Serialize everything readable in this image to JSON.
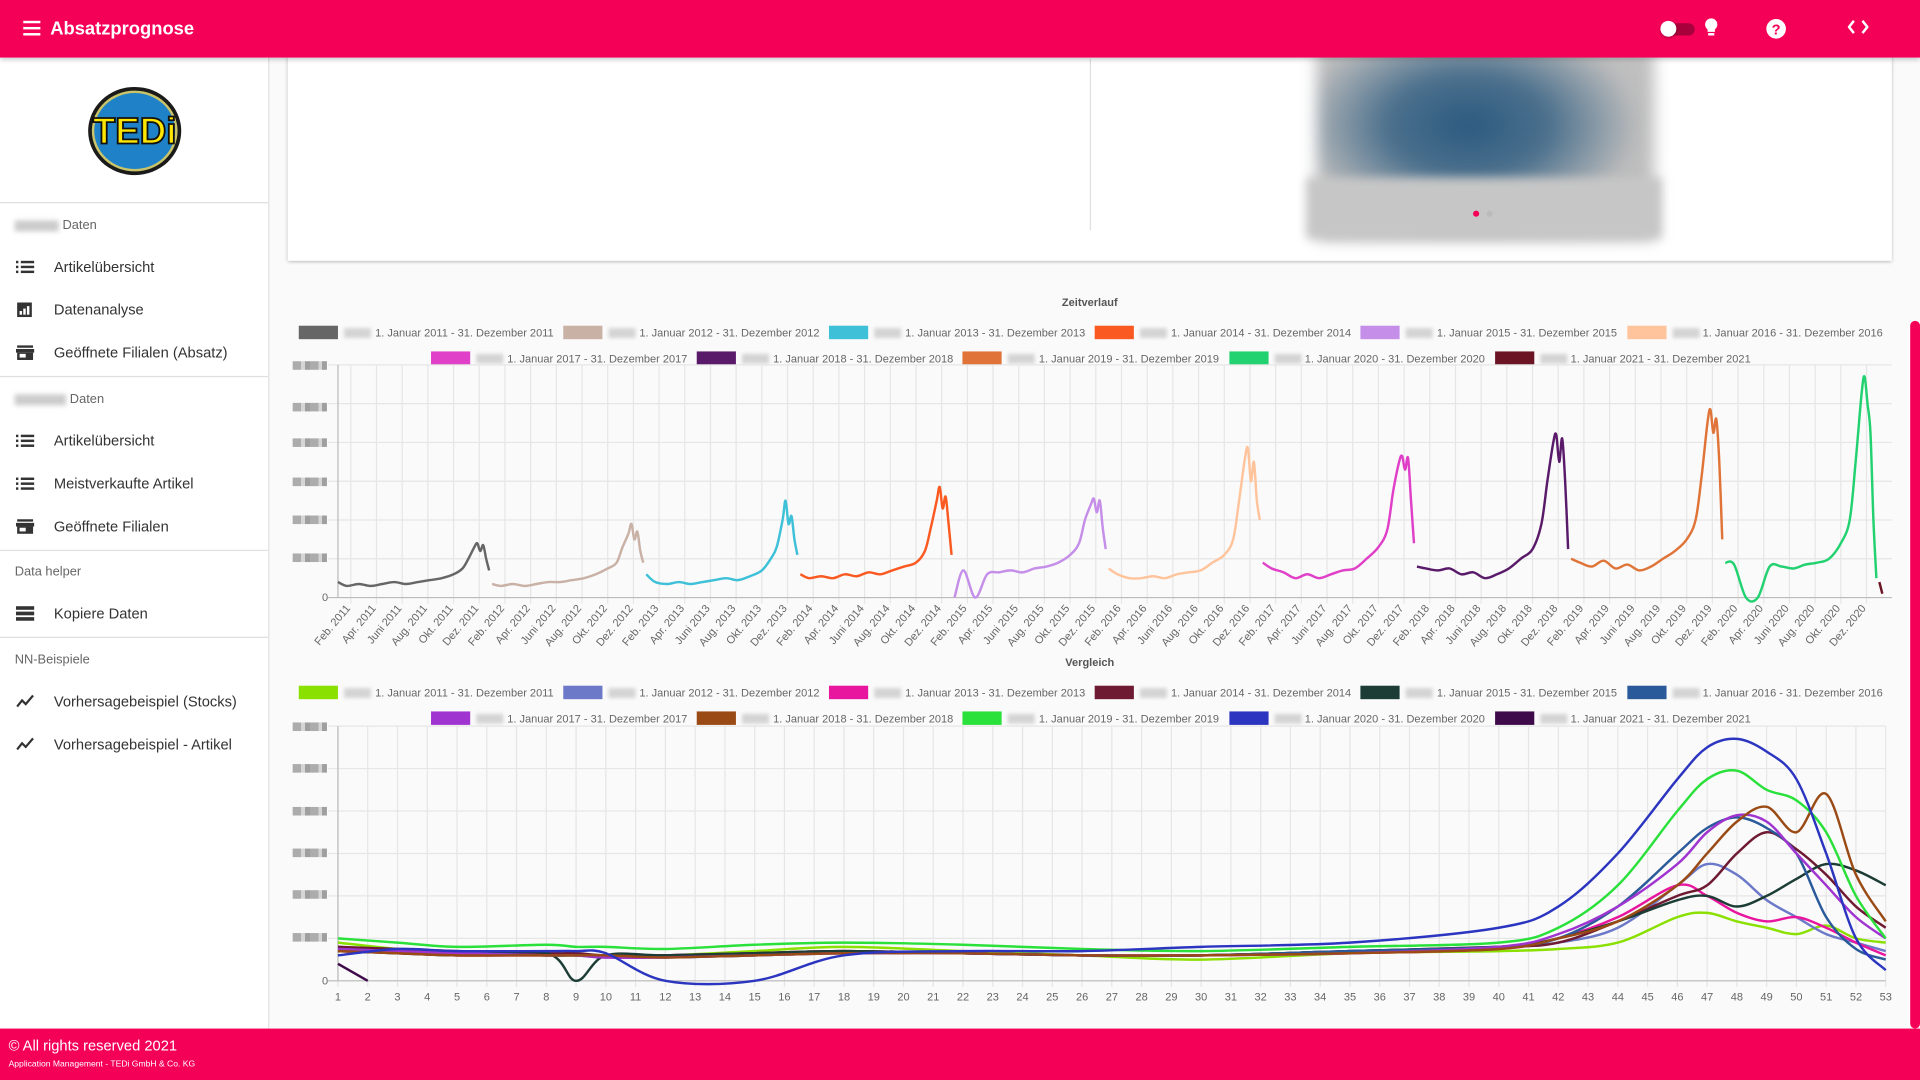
{
  "header": {
    "title": "Absatzprognose",
    "icons": [
      "menu-icon",
      "theme-toggle",
      "lightbulb-icon",
      "help-icon",
      "code-icon"
    ]
  },
  "logo_text": "TEDi",
  "sidebar": {
    "sections": [
      {
        "title": "Daten",
        "items": [
          {
            "label": "Artikelübersicht",
            "icon": "list-icon"
          },
          {
            "label": "Datenanalyse",
            "icon": "chart-icon"
          },
          {
            "label": "Geöffnete Filialen (Absatz)",
            "icon": "store-icon"
          }
        ]
      },
      {
        "title": "Daten",
        "items": [
          {
            "label": "Artikelübersicht",
            "icon": "list-icon"
          },
          {
            "label": "Meistverkaufte Artikel",
            "icon": "list-icon"
          },
          {
            "label": "Geöffnete Filialen",
            "icon": "store-icon"
          }
        ]
      },
      {
        "title": "Data helper",
        "items": [
          {
            "label": "Kopiere Daten",
            "icon": "storage-icon"
          }
        ]
      },
      {
        "title": "NN-Beispiele",
        "items": [
          {
            "label": "Vorhersagebeispiel (Stocks)",
            "icon": "trend-icon"
          },
          {
            "label": "Vorhersagebeispiel - Artikel",
            "icon": "trend-icon"
          }
        ]
      }
    ]
  },
  "footer": {
    "copyright": "© All rights reserved 2021",
    "company": "Application Management - TEDi GmbH & Co. KG"
  },
  "colors": {
    "brand": "#f50057"
  },
  "chart_data": [
    {
      "type": "line",
      "title": "Zeitverlauf",
      "ylim": [
        0,
        120
      ],
      "y_zero_label": "0",
      "x_tick_labels": [
        "Feb. 2011",
        "Apr. 2011",
        "Juni 2011",
        "Aug. 2011",
        "Okt. 2011",
        "Dez. 2011",
        "Feb. 2012",
        "Apr. 2012",
        "Juni 2012",
        "Aug. 2012",
        "Okt. 2012",
        "Dez. 2012",
        "Feb. 2013",
        "Apr. 2013",
        "Juni 2013",
        "Aug. 2013",
        "Okt. 2013",
        "Dez. 2013",
        "Feb. 2014",
        "Apr. 2014",
        "Juni 2014",
        "Aug. 2014",
        "Okt. 2014",
        "Dez. 2014",
        "Feb. 2015",
        "Apr. 2015",
        "Juni 2015",
        "Aug. 2015",
        "Okt. 2015",
        "Dez. 2015",
        "Feb. 2016",
        "Apr. 2016",
        "Juni 2016",
        "Aug. 2016",
        "Okt. 2016",
        "Dez. 2016",
        "Feb. 2017",
        "Apr. 2017",
        "Juni 2017",
        "Aug. 2017",
        "Okt. 2017",
        "Dez. 2017",
        "Feb. 2018",
        "Apr. 2018",
        "Juni 2018",
        "Aug. 2018",
        "Okt. 2018",
        "Dez. 2018",
        "Feb. 2019",
        "Apr. 2019",
        "Juni 2019",
        "Aug. 2019",
        "Okt. 2019",
        "Dez. 2019",
        "Feb. 2020",
        "Apr. 2020",
        "Juni 2020",
        "Aug. 2020",
        "Okt. 2020",
        "Dez. 2020"
      ],
      "weeks": [
        1,
        4,
        8,
        12,
        16,
        20,
        24,
        28,
        32,
        36,
        40,
        43,
        45,
        47,
        48,
        49,
        50,
        51,
        52
      ],
      "series": [
        {
          "year": 2011,
          "name": "1. Januar 2011 - 31. Dezember 2011",
          "color": "#666666",
          "values": [
            8,
            6,
            7,
            6,
            7,
            8,
            7,
            8,
            9,
            10,
            12,
            15,
            20,
            26,
            28,
            24,
            27,
            20,
            14
          ]
        },
        {
          "year": 2012,
          "name": "1. Januar 2012 - 31. Dezember 2012",
          "color": "#c9b1a6",
          "values": [
            7,
            6,
            7,
            6,
            7,
            8,
            8,
            9,
            10,
            12,
            15,
            18,
            26,
            33,
            38,
            30,
            34,
            24,
            18
          ]
        },
        {
          "year": 2013,
          "name": "1. Januar 2013 - 31. Dezember 2013",
          "color": "#3ec1d8",
          "values": [
            12,
            8,
            7,
            8,
            7,
            8,
            9,
            10,
            9,
            11,
            14,
            20,
            26,
            40,
            50,
            38,
            42,
            30,
            22
          ]
        },
        {
          "year": 2014,
          "name": "1. Januar 2014 - 31. Dezember 2014",
          "color": "#fa5a22",
          "values": [
            12,
            10,
            11,
            10,
            12,
            11,
            13,
            12,
            14,
            16,
            18,
            24,
            36,
            50,
            57,
            46,
            52,
            38,
            22
          ]
        },
        {
          "year": 2015,
          "name": "1. Januar 2015 - 31. Dezember 2015",
          "color": "#c58ee8",
          "values": [
            0,
            14,
            0,
            12,
            13,
            14,
            13,
            15,
            16,
            18,
            22,
            28,
            40,
            48,
            51,
            44,
            50,
            36,
            25
          ]
        },
        {
          "year": 2016,
          "name": "1. Januar 2016 - 31. Dezember 2016",
          "color": "#ffc49c",
          "values": [
            15,
            12,
            10,
            10,
            11,
            10,
            12,
            13,
            14,
            18,
            22,
            30,
            50,
            72,
            77,
            60,
            70,
            50,
            40
          ]
        },
        {
          "year": 2017,
          "name": "1. Januar 2017 - 31. Dezember 2017",
          "color": "#e040c8",
          "values": [
            18,
            15,
            13,
            10,
            12,
            10,
            12,
            14,
            15,
            20,
            26,
            35,
            55,
            70,
            73,
            66,
            72,
            50,
            28
          ]
        },
        {
          "year": 2018,
          "name": "1. Januar 2018 - 31. Dezember 2018",
          "color": "#5a1a6a",
          "values": [
            16,
            15,
            14,
            15,
            12,
            13,
            10,
            12,
            15,
            20,
            25,
            38,
            60,
            80,
            84,
            70,
            82,
            60,
            25
          ]
        },
        {
          "year": 2019,
          "name": "1. Januar 2019 - 31. Dezember 2019",
          "color": "#e07438",
          "values": [
            20,
            18,
            16,
            19,
            15,
            17,
            14,
            16,
            20,
            24,
            30,
            40,
            62,
            90,
            97,
            85,
            92,
            70,
            30
          ]
        },
        {
          "year": 2020,
          "name": "1. Januar 2020 - 31. Dezember 2020",
          "color": "#22d170",
          "values": [
            18,
            17,
            0,
            0,
            16,
            16,
            15,
            17,
            18,
            20,
            28,
            40,
            70,
            105,
            114,
            100,
            85,
            40,
            10
          ]
        },
        {
          "year": 2021,
          "name": "1. Januar 2021 - 31. Dezember 2021",
          "color": "#6a1424",
          "weeks": [
            1,
            2
          ],
          "values": [
            8,
            2
          ]
        }
      ]
    },
    {
      "type": "line",
      "title": "Vergleich",
      "ylim": [
        0,
        120
      ],
      "y_zero_label": "0",
      "x_tick_labels": [
        "1",
        "2",
        "3",
        "4",
        "5",
        "6",
        "7",
        "8",
        "9",
        "10",
        "11",
        "12",
        "13",
        "14",
        "15",
        "16",
        "17",
        "18",
        "19",
        "20",
        "21",
        "22",
        "23",
        "24",
        "25",
        "26",
        "27",
        "28",
        "29",
        "30",
        "31",
        "32",
        "33",
        "34",
        "35",
        "36",
        "37",
        "38",
        "39",
        "40",
        "41",
        "42",
        "43",
        "44",
        "45",
        "46",
        "47",
        "48",
        "49",
        "50",
        "51",
        "52",
        "53"
      ],
      "weeks": [
        1,
        3,
        5,
        8,
        9,
        10,
        12,
        15,
        18,
        22,
        26,
        30,
        35,
        40,
        42,
        44,
        46,
        47,
        48,
        49,
        50,
        51,
        52,
        53
      ],
      "series": [
        {
          "name": "1. Januar 2011 - 31. Dezember 2011",
          "color": "#8ae000",
          "values": [
            18,
            15,
            13,
            12,
            12,
            12,
            12,
            14,
            16,
            14,
            12,
            10,
            13,
            14,
            15,
            18,
            30,
            32,
            28,
            25,
            22,
            26,
            20,
            18
          ]
        },
        {
          "name": "1. Januar 2012 - 31. Dezember 2012",
          "color": "#6c78c8",
          "values": [
            16,
            14,
            13,
            12,
            12,
            11,
            12,
            13,
            14,
            13,
            12,
            12,
            14,
            16,
            18,
            25,
            45,
            55,
            50,
            38,
            30,
            22,
            18,
            14
          ]
        },
        {
          "name": "1. Januar 2013 - 31. Dezember 2013",
          "color": "#e8169e",
          "values": [
            14,
            13,
            12,
            12,
            12,
            12,
            12,
            13,
            14,
            13,
            12,
            12,
            13,
            15,
            20,
            30,
            45,
            40,
            32,
            28,
            30,
            25,
            18,
            12
          ]
        },
        {
          "name": "1. Januar 2014 - 31. Dezember 2014",
          "color": "#6e1a32",
          "values": [
            16,
            15,
            14,
            13,
            13,
            12,
            12,
            13,
            14,
            13,
            12,
            12,
            14,
            16,
            18,
            28,
            40,
            45,
            60,
            70,
            62,
            50,
            35,
            25
          ]
        },
        {
          "name": "1. Januar 2015 - 31. Dezember 2015",
          "color": "#1c3d35",
          "values": [
            14,
            13,
            12,
            13,
            0,
            12,
            12,
            13,
            14,
            13,
            12,
            12,
            14,
            16,
            20,
            28,
            38,
            40,
            35,
            40,
            48,
            55,
            52,
            45
          ]
        },
        {
          "name": "1. Januar 2016 - 31. Dezember 2016",
          "color": "#2a5a9a",
          "values": [
            15,
            14,
            13,
            12,
            12,
            12,
            11,
            12,
            13,
            13,
            12,
            12,
            14,
            16,
            20,
            35,
            60,
            72,
            77,
            72,
            60,
            30,
            15,
            10
          ]
        },
        {
          "name": "1. Januar 2017 - 31. Dezember 2017",
          "color": "#a034d0",
          "values": [
            15,
            14,
            13,
            12,
            12,
            11,
            11,
            12,
            13,
            13,
            12,
            12,
            13,
            16,
            22,
            35,
            55,
            70,
            78,
            75,
            60,
            45,
            30,
            20
          ]
        },
        {
          "name": "1. Januar 2018 - 31. Dezember 2018",
          "color": "#9a4a14",
          "values": [
            14,
            13,
            12,
            12,
            12,
            12,
            11,
            12,
            13,
            13,
            12,
            12,
            13,
            15,
            20,
            28,
            45,
            60,
            75,
            82,
            70,
            88,
            50,
            28
          ]
        },
        {
          "name": "1. Januar 2019 - 31. Dezember 2019",
          "color": "#2ae03a",
          "values": [
            20,
            18,
            16,
            17,
            16,
            16,
            15,
            17,
            18,
            17,
            15,
            14,
            16,
            18,
            25,
            45,
            80,
            95,
            99,
            90,
            85,
            70,
            40,
            20
          ]
        },
        {
          "name": "1. Januar 2020 - 31. Dezember 2020",
          "color": "#2b35c0",
          "values": [
            12,
            15,
            14,
            14,
            14,
            13,
            0,
            0,
            12,
            14,
            14,
            16,
            18,
            25,
            35,
            60,
            95,
            110,
            114,
            108,
            95,
            60,
            20,
            5
          ]
        },
        {
          "name": "1. Januar 2021 - 31. Dezember 2021",
          "color": "#3e0a4a",
          "weeks": [
            1,
            2
          ],
          "values": [
            8,
            0
          ]
        }
      ]
    }
  ]
}
